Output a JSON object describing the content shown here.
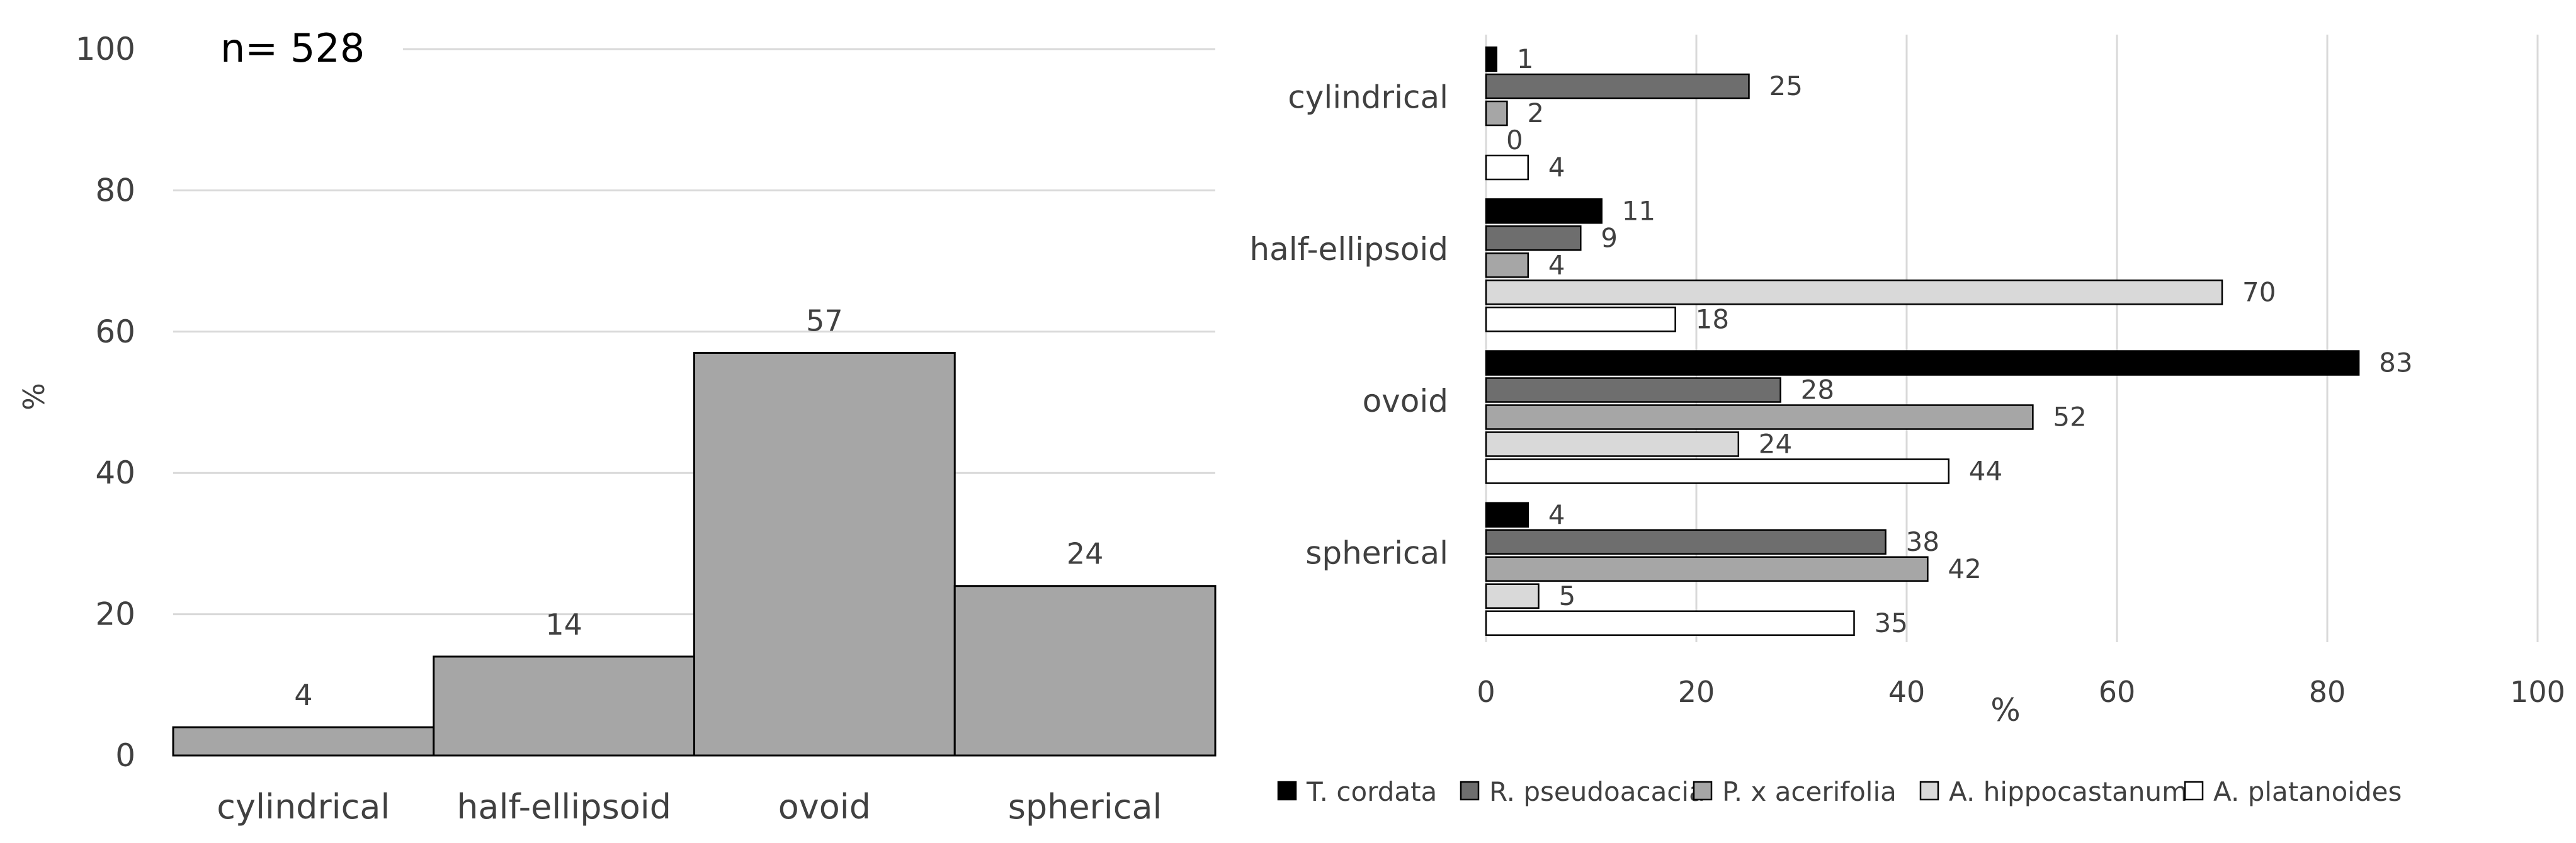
{
  "chart_data": [
    {
      "type": "bar",
      "orientation": "vertical",
      "title": "",
      "annotation": "n= 528",
      "xlabel": "",
      "ylabel": "%",
      "ylim": [
        0,
        100
      ],
      "yticks": [
        0,
        20,
        40,
        60,
        80,
        100
      ],
      "grid": true,
      "categories": [
        "cylindrical",
        "half-ellipsoid",
        "ovoid",
        "spherical"
      ],
      "values": [
        4,
        14,
        57,
        24
      ],
      "bar_color": "#a6a6a6"
    },
    {
      "type": "bar",
      "orientation": "horizontal",
      "title": "",
      "xlabel": "%",
      "ylabel": "",
      "xlim": [
        0,
        100
      ],
      "xticks": [
        0,
        20,
        40,
        60,
        80,
        100
      ],
      "grid": true,
      "legend_position": "bottom",
      "categories": [
        "cylindrical",
        "half-ellipsoid",
        "ovoid",
        "spherical"
      ],
      "series": [
        {
          "name": "T. cordata",
          "color": "#000000",
          "values": [
            1,
            11,
            83,
            4
          ]
        },
        {
          "name": "R. pseudoacacia",
          "color": "#6e6e6e",
          "values": [
            25,
            9,
            28,
            38
          ]
        },
        {
          "name": "P. x acerifolia",
          "color": "#a6a6a6",
          "values": [
            2,
            4,
            52,
            42
          ]
        },
        {
          "name": "A. hippocastanum",
          "color": "#d9d9d9",
          "values": [
            0,
            70,
            24,
            5
          ]
        },
        {
          "name": "A. platanoides",
          "color": "#ffffff",
          "values": [
            4,
            18,
            44,
            35
          ]
        }
      ]
    }
  ]
}
